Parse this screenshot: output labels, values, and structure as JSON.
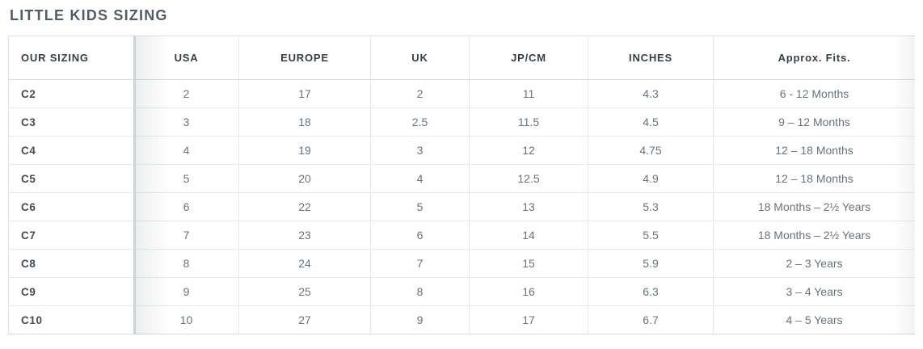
{
  "page": {
    "title": "LITTLE KIDS SIZING"
  },
  "table": {
    "columns": [
      "OUR SIZING",
      "USA",
      "EUROPE",
      "UK",
      "JP/CM",
      "INCHES",
      "Approx. Fits."
    ],
    "rows": [
      [
        "C2",
        "2",
        "17",
        "2",
        "11",
        "4.3",
        "6 - 12 Months"
      ],
      [
        "C3",
        "3",
        "18",
        "2.5",
        "11.5",
        "4.5",
        "9 – 12 Months"
      ],
      [
        "C4",
        "4",
        "19",
        "3",
        "12",
        "4.75",
        "12 – 18 Months"
      ],
      [
        "C5",
        "5",
        "20",
        "4",
        "12.5",
        "4.9",
        "12 – 18 Months"
      ],
      [
        "C6",
        "6",
        "22",
        "5",
        "13",
        "5.3",
        "18 Months – 2½ Years"
      ],
      [
        "C7",
        "7",
        "23",
        "6",
        "14",
        "5.5",
        "18 Months – 2½ Years"
      ],
      [
        "C8",
        "8",
        "24",
        "7",
        "15",
        "5.9",
        "2 – 3 Years"
      ],
      [
        "C9",
        "9",
        "25",
        "8",
        "16",
        "6.3",
        "3 – 4 Years"
      ],
      [
        "C10",
        "10",
        "27",
        "9",
        "17",
        "6.7",
        "4 – 5 Years"
      ]
    ]
  },
  "colors": {
    "title_text": "#515c66",
    "header_text": "#373e44",
    "row_label_text": "#454d53",
    "cell_text": "#68737d",
    "grid_border": "#e4ebf0",
    "outer_border": "#d6dce1",
    "sticky_divider": "#ccd3d8",
    "background": "#ffffff"
  }
}
